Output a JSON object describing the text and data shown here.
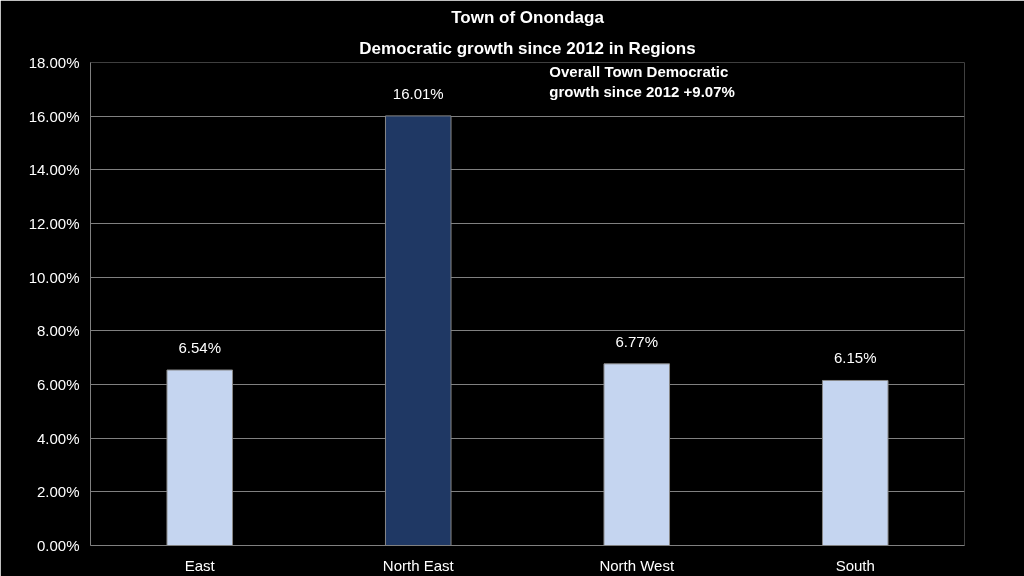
{
  "chart_data": {
    "type": "bar",
    "title": "Town of Onondaga",
    "subtitle": "Democratic growth since 2012 in Regions",
    "categories": [
      "East",
      "North East",
      "North West",
      "South"
    ],
    "values": [
      6.54,
      16.01,
      6.77,
      6.15
    ],
    "colors": [
      "#c5d5f0",
      "#1f3864",
      "#c5d5f0",
      "#c5d5f0"
    ],
    "value_labels": [
      "6.54%",
      "16.01%",
      "6.77%",
      "6.15%"
    ],
    "ylim": [
      0,
      18
    ],
    "yticks": [
      {
        "value": 0,
        "label": "0.00%"
      },
      {
        "value": 2,
        "label": "2.00%"
      },
      {
        "value": 4,
        "label": "4.00%"
      },
      {
        "value": 6,
        "label": "6.00%"
      },
      {
        "value": 8,
        "label": "8.00%"
      },
      {
        "value": 10,
        "label": "10.00%"
      },
      {
        "value": 12,
        "label": "12.00%"
      },
      {
        "value": 14,
        "label": "14.00%"
      },
      {
        "value": 16,
        "label": "16.00%"
      },
      {
        "value": 18,
        "label": "18.00%"
      }
    ],
    "annotations": [
      "Overall Town Democratic\ngrowth since 2012 +9.07%"
    ],
    "grid": "y"
  }
}
